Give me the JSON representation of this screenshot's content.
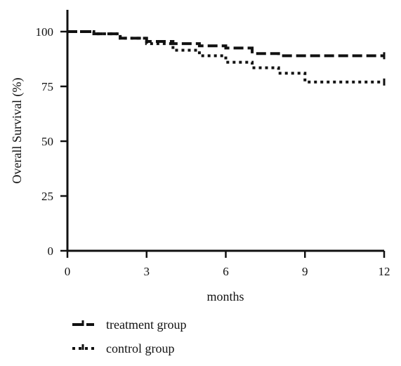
{
  "chart_data": {
    "type": "line",
    "title": "",
    "xlabel": "months",
    "ylabel": "Overall Survival (%)",
    "xlim": [
      0,
      12
    ],
    "ylim": [
      0,
      100
    ],
    "x_ticks": [
      "0",
      "3",
      "6",
      "9",
      "12"
    ],
    "y_ticks": [
      "0",
      "25",
      "50",
      "75",
      "100"
    ],
    "grid": false,
    "legend_position": "bottom-left",
    "step": true,
    "series": [
      {
        "name": "treatment group",
        "line_style": "dashed",
        "color": "#111111",
        "x": [
          0,
          1,
          2,
          3,
          4,
          5,
          6,
          7,
          8,
          12
        ],
        "y": [
          100,
          99,
          97,
          95.5,
          94.5,
          93.5,
          92.5,
          90,
          89,
          89
        ]
      },
      {
        "name": "control group",
        "line_style": "dotted",
        "color": "#111111",
        "x": [
          0,
          1,
          2,
          3,
          4,
          5,
          6,
          7,
          8,
          9,
          12
        ],
        "y": [
          100,
          99,
          97,
          94.5,
          91.5,
          89,
          86,
          83.5,
          81,
          77,
          77
        ]
      }
    ]
  }
}
